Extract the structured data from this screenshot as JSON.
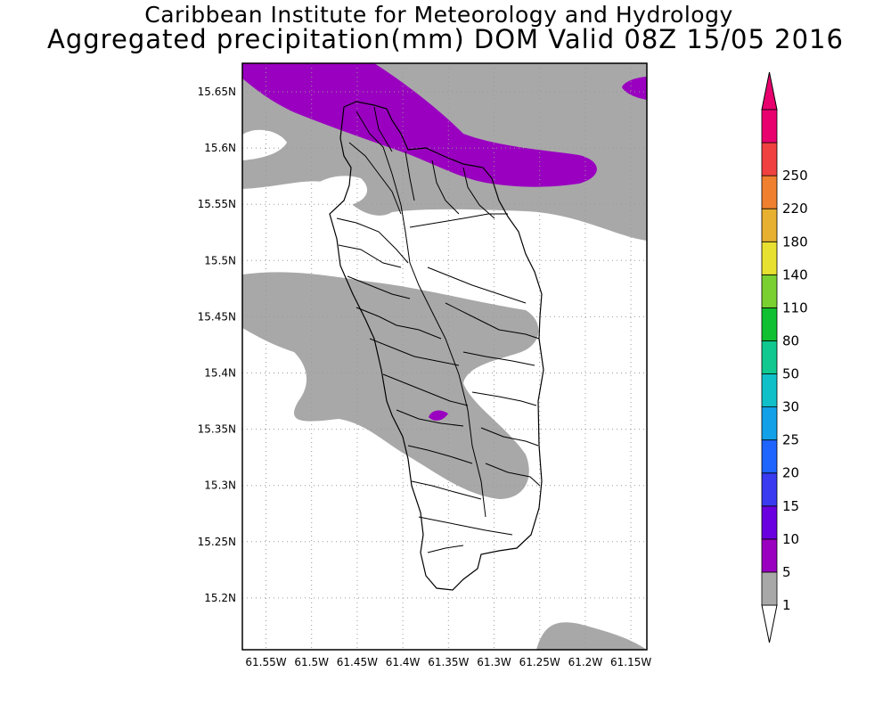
{
  "title": {
    "line1": "Caribbean Institute for Meteorology and Hydrology",
    "line2": "Aggregated precipitation(mm) DOM Valid 08Z 15/05 2016"
  },
  "map": {
    "lon_ticks": [
      "61.55W",
      "61.5W",
      "61.45W",
      "61.4W",
      "61.35W",
      "61.3W",
      "61.25W",
      "61.2W",
      "61.15W"
    ],
    "lat_ticks": [
      "15.65N",
      "15.6N",
      "15.55N",
      "15.5N",
      "15.45N",
      "15.4N",
      "15.35N",
      "15.3N",
      "15.25N",
      "15.2N"
    ],
    "grid": true
  },
  "legend": {
    "labels": [
      "1",
      "5",
      "10",
      "15",
      "20",
      "25",
      "30",
      "50",
      "80",
      "110",
      "140",
      "180",
      "220",
      "250"
    ],
    "colors": [
      "#a8a8a8",
      "#9a00c0",
      "#6a00e0",
      "#3a3af0",
      "#1e64ff",
      "#12a0e8",
      "#10c0c8",
      "#10c890",
      "#10c030",
      "#7ad030",
      "#e8e030",
      "#e8b030",
      "#f08030",
      "#f04040",
      "#e8006e"
    ],
    "color_ends": {
      "low": "#ffffff",
      "high": "#e8006e"
    }
  }
}
